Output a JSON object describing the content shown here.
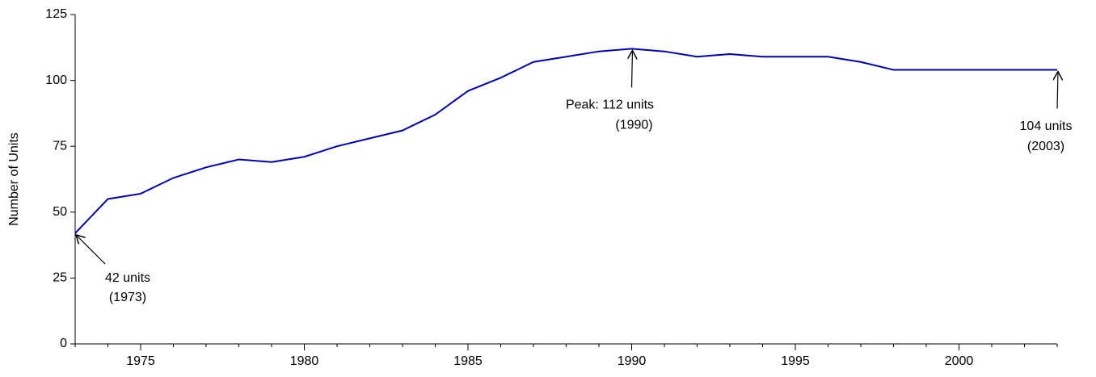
{
  "chart_data": {
    "type": "line",
    "y_label": "Number of Units",
    "x": [
      1973,
      1974,
      1975,
      1976,
      1977,
      1978,
      1979,
      1980,
      1981,
      1982,
      1983,
      1984,
      1985,
      1986,
      1987,
      1988,
      1989,
      1990,
      1991,
      1992,
      1993,
      1994,
      1995,
      1996,
      1997,
      1998,
      1999,
      2000,
      2001,
      2002,
      2003
    ],
    "series": [
      {
        "name": "Number of Units",
        "color": "#0000b4",
        "values": [
          42,
          55,
          57,
          63,
          67,
          70,
          69,
          71,
          75,
          78,
          81,
          87,
          96,
          101,
          107,
          109,
          111,
          112,
          111,
          109,
          110,
          109,
          109,
          109,
          107,
          104,
          104,
          104,
          104,
          104,
          104
        ]
      }
    ],
    "xlim": [
      1973,
      2003
    ],
    "xticks": [
      1975,
      1980,
      1985,
      1990,
      1995,
      2000
    ],
    "ylim": [
      0,
      125
    ],
    "yticks": [
      0,
      25,
      50,
      75,
      100,
      125
    ],
    "grid": false,
    "annotations": [
      {
        "lines": [
          "42 units",
          "(1973)"
        ],
        "x": 1973,
        "y": 42
      },
      {
        "lines": [
          "Peak:  112 units",
          "(1990)"
        ],
        "x": 1990,
        "y": 112
      },
      {
        "lines": [
          "104 units",
          "(2003)"
        ],
        "x": 2003,
        "y": 104
      }
    ]
  }
}
